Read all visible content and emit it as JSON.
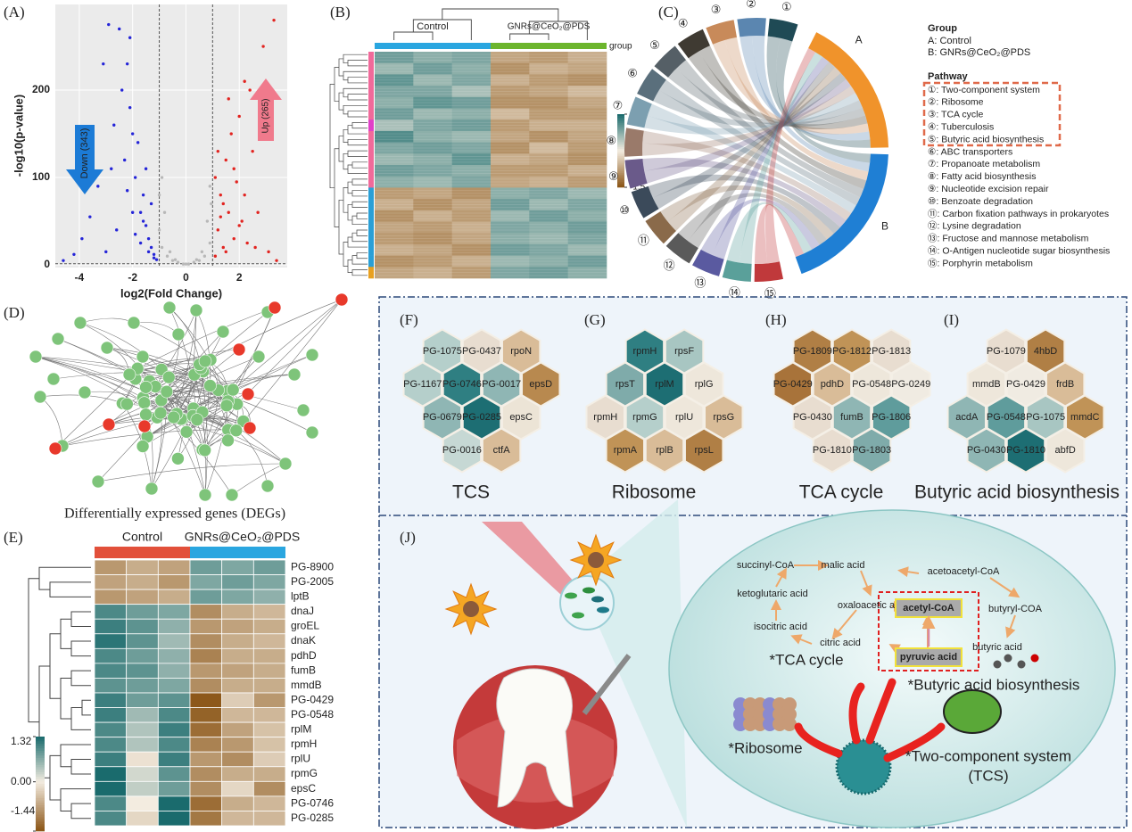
{
  "panels": {
    "A": {
      "label": "(A)",
      "chart": {
        "type": "scatter",
        "xlabel": "log2(Fold Change)",
        "ylabel": "-log10(p-value)",
        "xlim": [
          -4.9,
          3.8
        ],
        "ylim": [
          -3,
          298
        ],
        "xticks": [
          -4,
          -2,
          0,
          2
        ],
        "yticks": [
          0,
          100,
          200
        ],
        "grid": true,
        "vlines": [
          -1,
          1
        ],
        "hline": 1.3,
        "series": [
          {
            "name": "Down (343)",
            "color": "#2424d8",
            "x": [
              -4.6,
              -4.2,
              -3.9,
              -3.6,
              -3.3,
              -3.1,
              -2.9,
              -2.7,
              -2.5,
              -2.4,
              -2.3,
              -2.2,
              -2.1,
              -2.0,
              -1.9,
              -1.8,
              -1.7,
              -1.6,
              -1.5,
              -1.4,
              -1.3,
              -1.2,
              -1.1,
              -2.6,
              -2.0,
              -1.7,
              -1.5,
              -1.3,
              -3.0,
              -2.2,
              -1.9,
              -1.6,
              -1.4,
              -1.2,
              -2.8,
              -2.1
            ],
            "y": [
              5,
              12,
              30,
              55,
              90,
              230,
              275,
              160,
              270,
              200,
              120,
              230,
              180,
              150,
              100,
              140,
              60,
              80,
              45,
              30,
              20,
              12,
              6,
              40,
              60,
              25,
              110,
              70,
              15,
              85,
              35,
              50,
              15,
              8,
              110,
              260
            ]
          },
          {
            "name": "Up (265)",
            "color": "#e2231f",
            "x": [
              1.1,
              1.2,
              1.3,
              1.4,
              1.5,
              1.6,
              1.7,
              1.8,
              1.9,
              2.0,
              2.1,
              2.2,
              2.3,
              2.5,
              2.7,
              2.9,
              3.1,
              3.3,
              1.2,
              1.4,
              1.6,
              1.8,
              2.0,
              2.4,
              1.5,
              1.3,
              2.2,
              2.6,
              3.4,
              1.1
            ],
            "y": [
              10,
              40,
              80,
              20,
              120,
              60,
              150,
              30,
              95,
              170,
              50,
              210,
              25,
              130,
              60,
              250,
              15,
              280,
              130,
              70,
              190,
              110,
              45,
              200,
              15,
              55,
              80,
              20,
              5,
              100
            ]
          },
          {
            "color": "#b8b8b8",
            "x": [
              -1.0,
              -0.9,
              -0.7,
              -0.5,
              -0.3,
              -0.1,
              0.1,
              0.3,
              0.5,
              0.7,
              0.9,
              -0.8,
              -0.6,
              0.6,
              0.8,
              -1.0,
              0.95,
              -0.4,
              0.4,
              0,
              -0.9,
              0.9
            ],
            "y": [
              40,
              20,
              10,
              5,
              3,
              1,
              1,
              3,
              5,
              10,
              25,
              60,
              15,
              15,
              50,
              80,
              70,
              6,
              6,
              1,
              100,
              90
            ]
          }
        ]
      }
    },
    "B": {
      "label": "(B)",
      "chart": {
        "type": "heatmap",
        "groups": [
          {
            "name": "Control",
            "color": "#2aa6e0"
          },
          {
            "name": "GNRs@CeO₂@PDS",
            "color": "#6cb52d"
          }
        ],
        "group_title": "group",
        "colors": {
          "low": "#8a5414",
          "mid": "#f3ece0",
          "high": "#17696b"
        },
        "clim": [
          -1.5,
          1.5
        ],
        "cticks": [
          1.5,
          0,
          -1.5
        ],
        "row_colors": [
          "#f06a9a",
          "#f06a9a",
          "#f06a9a",
          "#f06a9a",
          "#f06a9a",
          "#f06a9a",
          "#e040c8",
          "#f06a9a",
          "#f06a9a",
          "#f06a9a",
          "#f06a9a",
          "#f06a9a",
          "#2a9fd6",
          "#2a9fd6",
          "#2a9fd6",
          "#2a9fd6",
          "#2a9fd6",
          "#2a9fd6",
          "#2a9fd6",
          "#e8a020"
        ],
        "values": [
          [
            0.9,
            0.7,
            0.8,
            -0.7,
            -0.8,
            -0.6
          ],
          [
            0.6,
            0.9,
            0.7,
            -0.9,
            -0.6,
            -0.7
          ],
          [
            1.0,
            0.6,
            0.8,
            -0.6,
            -0.8,
            -0.9
          ],
          [
            0.8,
            0.8,
            0.5,
            -0.8,
            -0.7,
            -0.5
          ],
          [
            0.7,
            1.0,
            0.9,
            -0.9,
            -0.9,
            -0.7
          ],
          [
            0.9,
            0.6,
            0.7,
            -0.5,
            -0.8,
            -0.8
          ],
          [
            0.5,
            0.8,
            0.9,
            -0.8,
            -0.6,
            -0.6
          ],
          [
            1.1,
            0.7,
            0.6,
            -0.7,
            -0.9,
            -0.7
          ],
          [
            0.8,
            0.9,
            0.8,
            -0.9,
            -0.5,
            -0.8
          ],
          [
            0.6,
            0.7,
            1.0,
            -0.6,
            -0.7,
            -0.9
          ],
          [
            0.9,
            0.8,
            0.7,
            -0.8,
            -0.8,
            -0.6
          ],
          [
            0.7,
            0.6,
            0.8,
            -0.7,
            -0.6,
            -0.8
          ],
          [
            -0.8,
            -0.7,
            -0.9,
            0.7,
            0.8,
            0.6
          ],
          [
            -0.6,
            -0.9,
            -0.7,
            0.9,
            0.6,
            0.8
          ],
          [
            -0.9,
            -0.6,
            -0.8,
            0.6,
            0.9,
            0.7
          ],
          [
            -0.7,
            -0.8,
            -0.6,
            0.8,
            0.7,
            0.9
          ],
          [
            -0.8,
            -0.9,
            -0.7,
            0.7,
            0.6,
            0.8
          ],
          [
            -0.6,
            -0.7,
            -0.9,
            0.9,
            0.8,
            0.6
          ],
          [
            -0.9,
            -0.8,
            -0.6,
            0.6,
            0.7,
            0.9
          ],
          [
            -0.7,
            -0.6,
            -0.8,
            0.8,
            0.9,
            0.7
          ]
        ]
      }
    },
    "C": {
      "label": "(C)",
      "group_title": "Group",
      "groups": [
        {
          "key": "A",
          "legend": "A: Control",
          "color": "#f0932b"
        },
        {
          "key": "B",
          "legend": "B: GNRs@CeO₂@PDS",
          "color": "#1f7fd4"
        }
      ],
      "pathway_title": "Pathway",
      "pathways": [
        {
          "num": "①",
          "legend": "①: Two-component system",
          "color": "#1f4a55"
        },
        {
          "num": "②",
          "legend": "②: Ribosome",
          "color": "#5b86b0"
        },
        {
          "num": "③",
          "legend": "③: TCA cycle",
          "color": "#c88a5a"
        },
        {
          "num": "④",
          "legend": "④: Tuberculosis",
          "color": "#3f3a32"
        },
        {
          "num": "⑤",
          "legend": "⑤: Butyric acid biosynthesis",
          "color": "#555f66"
        },
        {
          "num": "⑥",
          "legend": "⑥: ABC transporters",
          "color": "#5a6f7c"
        },
        {
          "num": "⑦",
          "legend": "⑦: Propanoate metabolism",
          "color": "#7c9fb0"
        },
        {
          "num": "⑧",
          "legend": "⑧: Fatty acid biosynthesis",
          "color": "#9a7a6a"
        },
        {
          "num": "⑨",
          "legend": "⑨: Nucleotide excision repair",
          "color": "#6a5a8a"
        },
        {
          "num": "⑩",
          "legend": "⑩: Benzoate degradation",
          "color": "#3b4a5a"
        },
        {
          "num": "⑪",
          "legend": "⑪: Carbon fixation pathways in prokaryotes",
          "color": "#8a6a4a"
        },
        {
          "num": "⑫",
          "legend": "⑫: Lysine degradation",
          "color": "#5a5a5a"
        },
        {
          "num": "⑬",
          "legend": "⑬: Fructose and mannose metabolism",
          "color": "#5a5aa0"
        },
        {
          "num": "⑭",
          "legend": "⑭: O-Antigen nucleotide sugar biosynthesis",
          "color": "#5aa09a"
        },
        {
          "num": "⑮",
          "legend": "⑮: Porphyrin metabolism",
          "color": "#c0393b"
        }
      ]
    },
    "D": {
      "label": "(D)",
      "caption": "Differentially expressed genes (DEGs)"
    },
    "E": {
      "label": "(E)",
      "chart": {
        "type": "heatmap",
        "groups": [
          {
            "name": "Control",
            "color": "#e2503a"
          },
          {
            "name": "GNRs@CeO₂@PDS",
            "color": "#2aa6e0"
          }
        ],
        "colors": {
          "low": "#8a5414",
          "mid": "#f3ece0",
          "high": "#17696b"
        },
        "clim": [
          -1.44,
          1.32
        ],
        "cticks": [
          1.32,
          {
            "value": 0,
            "label": "0.00"
          },
          -1.44
        ],
        "rows": [
          "PG-8900",
          "PG-2005",
          "lptB",
          "dnaJ",
          "groEL",
          "dnaK",
          "pdhD",
          "fumB",
          "mmdB",
          "PG-0429",
          "PG-0548",
          "rplM",
          "rpmH",
          "rplU",
          "rpmG",
          "epsC",
          "PG-0746",
          "PG-0285"
        ],
        "values": [
          [
            -0.8,
            -0.6,
            -0.7,
            0.8,
            0.7,
            0.8
          ],
          [
            -0.7,
            -0.6,
            -0.8,
            0.7,
            0.8,
            0.7
          ],
          [
            -0.8,
            -0.7,
            -0.6,
            0.8,
            0.7,
            0.6
          ],
          [
            1.0,
            0.8,
            0.7,
            -0.9,
            -0.6,
            -0.5
          ],
          [
            1.1,
            0.9,
            0.6,
            -0.8,
            -0.7,
            -0.6
          ],
          [
            1.2,
            0.9,
            0.5,
            -0.9,
            -0.6,
            -0.5
          ],
          [
            1.0,
            0.8,
            0.6,
            -1.0,
            -0.6,
            -0.6
          ],
          [
            1.0,
            0.9,
            0.6,
            -0.8,
            -0.7,
            -0.6
          ],
          [
            0.9,
            0.8,
            0.7,
            -0.9,
            -0.6,
            -0.6
          ],
          [
            1.1,
            0.8,
            0.9,
            -1.4,
            -0.3,
            -0.8
          ],
          [
            1.1,
            0.5,
            1.0,
            -1.3,
            -0.5,
            -0.5
          ],
          [
            1.0,
            0.4,
            1.1,
            -1.2,
            -0.7,
            -0.4
          ],
          [
            1.0,
            0.4,
            1.0,
            -1.0,
            -0.8,
            -0.4
          ],
          [
            1.1,
            -0.1,
            1.1,
            -0.8,
            -0.9,
            -0.3
          ],
          [
            1.3,
            0.2,
            0.9,
            -0.9,
            -0.6,
            -0.6
          ],
          [
            1.3,
            0.3,
            0.8,
            -0.9,
            -0.2,
            -0.9
          ],
          [
            1.0,
            0.0,
            1.3,
            -1.2,
            -0.6,
            -0.5
          ],
          [
            1.0,
            -0.2,
            1.3,
            -1.1,
            -0.5,
            -0.5
          ]
        ]
      }
    },
    "F": {
      "label": "(F)",
      "title": "TCS",
      "rows": [
        [
          {
            "gene": "PG-1075",
            "color": "#b5cfcb"
          },
          {
            "gene": "PG-0437",
            "color": "#e8ddd0"
          },
          {
            "gene": "rpoN",
            "color": "#d9bc98"
          }
        ],
        [
          {
            "gene": "PG-1167",
            "color": "#b5cfcb"
          },
          {
            "gene": "PG-0746",
            "color": "#2f7f82"
          },
          {
            "gene": "PG-0017",
            "color": "#8fb6b4"
          },
          {
            "gene": "epsD",
            "color": "#b8894f"
          }
        ],
        [
          {
            "gene": "PG-0679",
            "color": "#8fb6b4"
          },
          {
            "gene": "PG-0285",
            "color": "#1d6e73"
          },
          {
            "gene": "epsC",
            "color": "#ece4d6"
          }
        ],
        [
          {
            "gene": "PG-0016",
            "color": "#c6d8d4"
          },
          {
            "gene": "ctfA",
            "color": "#d9bc98"
          }
        ]
      ]
    },
    "G": {
      "label": "(G)",
      "title": "Ribosome",
      "rows": [
        [
          {
            "gene": "rpmH",
            "color": "#2f7f82"
          },
          {
            "gene": "rpsF",
            "color": "#a8c6c2"
          }
        ],
        [
          {
            "gene": "rpsT",
            "color": "#7fabaa"
          },
          {
            "gene": "rplM",
            "color": "#1d6e73"
          },
          {
            "gene": "rplG",
            "color": "#eee7db"
          }
        ],
        [
          {
            "gene": "rpmH",
            "color": "#e8ddd0"
          },
          {
            "gene": "rpmG",
            "color": "#b5cfcb"
          },
          {
            "gene": "rplU",
            "color": "#eee7db"
          },
          {
            "gene": "rpsG",
            "color": "#d9bc98"
          }
        ],
        [
          {
            "gene": "rpmA",
            "color": "#c09357"
          },
          {
            "gene": "rplB",
            "color": "#d9bc98"
          },
          {
            "gene": "rpsL",
            "color": "#b07f45"
          }
        ]
      ]
    },
    "H": {
      "label": "(H)",
      "title": "TCA cycle",
      "rows": [
        [
          {
            "gene": "PG-1809",
            "color": "#b07f45"
          },
          {
            "gene": "PG-1812",
            "color": "#c09357"
          },
          {
            "gene": "PG-1813",
            "color": "#e8ddd0"
          }
        ],
        [
          {
            "gene": "PG-0429",
            "color": "#a8733a"
          },
          {
            "gene": "pdhD",
            "color": "#d9bc98"
          },
          {
            "gene": "PG-0548",
            "color": "#eee7db"
          },
          {
            "gene": "PG-0249",
            "color": "#f0ebe2"
          }
        ],
        [
          {
            "gene": "PG-0430",
            "color": "#e8ddd0"
          },
          {
            "gene": "fumB",
            "color": "#8fb6b4"
          },
          {
            "gene": "PG-1806",
            "color": "#5f9c9c"
          }
        ],
        [
          {
            "gene": "PG-1810",
            "color": "#e8ddd0"
          },
          {
            "gene": "PG-1803",
            "color": "#7fabaa"
          }
        ]
      ]
    },
    "I": {
      "label": "(I)",
      "title": "Butyric acid biosynthesis",
      "rows": [
        [
          {
            "gene": "PG-1079",
            "color": "#e8ddd0"
          },
          {
            "gene": "4hbD",
            "color": "#b07f45"
          }
        ],
        [
          {
            "gene": "mmdB",
            "color": "#eee7db"
          },
          {
            "gene": "PG-0429",
            "color": "#f0ebe2"
          },
          {
            "gene": "frdB",
            "color": "#d9bc98"
          }
        ],
        [
          {
            "gene": "acdA",
            "color": "#8fb6b4"
          },
          {
            "gene": "PG-0548",
            "color": "#5f9c9c"
          },
          {
            "gene": "PG-1075",
            "color": "#a8c6c2"
          },
          {
            "gene": "mmdC",
            "color": "#c09357"
          }
        ],
        [
          {
            "gene": "PG-0430",
            "color": "#8fb6b4"
          },
          {
            "gene": "PG-1810",
            "color": "#1d6e73"
          },
          {
            "gene": "abfD",
            "color": "#eee7db"
          }
        ]
      ]
    },
    "J": {
      "label": "(J)",
      "metabolites": [
        "succinyl-CoA",
        "malic acid",
        "acetoacetyl-CoA",
        "ketoglutaric acid",
        "oxaloacetic acid",
        "acetyl-CoA",
        "butyryl-COA",
        "isocitric acid",
        "citric acid",
        "pyruvic acid",
        "butyric acid"
      ],
      "tca": "*TCA cycle",
      "butyrate": "*Butyric acid biosynthesis",
      "ribosome": "*Ribosome",
      "tcs": "*Two-component system",
      "tcs_short": "(TCS)"
    }
  }
}
